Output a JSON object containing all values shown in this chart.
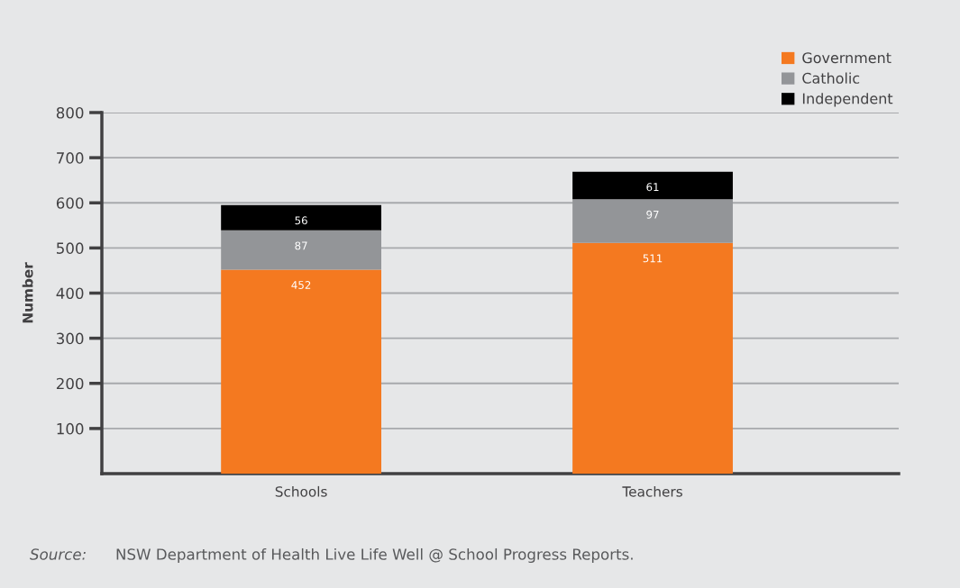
{
  "chart_data": {
    "type": "bar",
    "stacked": true,
    "categories": [
      "Schools",
      "Teachers"
    ],
    "series": [
      {
        "name": "Government",
        "color": "#f47920",
        "values": [
          452,
          511
        ]
      },
      {
        "name": "Catholic",
        "color": "#939598",
        "values": [
          87,
          97
        ]
      },
      {
        "name": "Independent",
        "color": "#000000",
        "values": [
          56,
          61
        ]
      }
    ],
    "ylabel": "Number",
    "ylim": [
      0,
      800
    ],
    "yticks": [
      100,
      200,
      300,
      400,
      500,
      600,
      700,
      800
    ],
    "grid": "y",
    "legend": "top right",
    "data_labels": true,
    "annotations": [
      "Source:",
      "NSW Department of Health Live Life Well @ School Progress Reports."
    ]
  }
}
